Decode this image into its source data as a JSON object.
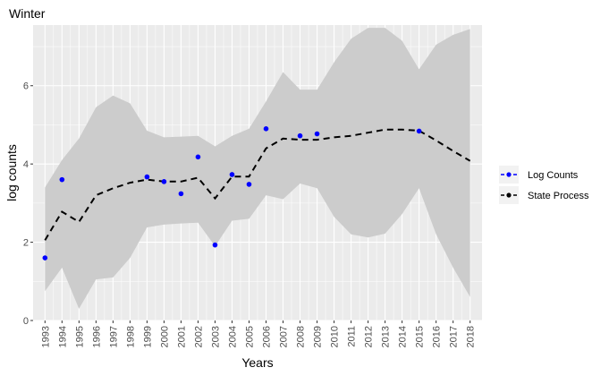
{
  "chart_data": {
    "type": "line",
    "title": "Winter",
    "xlabel": "Years",
    "ylabel": "log counts",
    "xlim": [
      1992.3,
      2018.7
    ],
    "ylim": [
      0,
      7.55
    ],
    "yticks": [
      0,
      2,
      4,
      6
    ],
    "x": [
      1993,
      1994,
      1995,
      1996,
      1997,
      1998,
      1999,
      2000,
      2001,
      2002,
      2003,
      2004,
      2005,
      2006,
      2007,
      2008,
      2009,
      2010,
      2011,
      2012,
      2013,
      2014,
      2015,
      2016,
      2017,
      2018
    ],
    "series": [
      {
        "name": "Log Counts",
        "kind": "points",
        "color": "#0000ff",
        "points": [
          {
            "x": 1993,
            "y": 1.6
          },
          {
            "x": 1994,
            "y": 3.6
          },
          {
            "x": 1999,
            "y": 3.67
          },
          {
            "x": 2000,
            "y": 3.55
          },
          {
            "x": 2001,
            "y": 3.24
          },
          {
            "x": 2002,
            "y": 4.18
          },
          {
            "x": 2003,
            "y": 1.93
          },
          {
            "x": 2004,
            "y": 3.73
          },
          {
            "x": 2005,
            "y": 3.48
          },
          {
            "x": 2006,
            "y": 4.9
          },
          {
            "x": 2008,
            "y": 4.72
          },
          {
            "x": 2009,
            "y": 4.77
          },
          {
            "x": 2015,
            "y": 4.84
          }
        ]
      },
      {
        "name": "State Process",
        "kind": "dashed-line",
        "color": "#000000",
        "values": [
          2.05,
          2.78,
          2.52,
          3.2,
          3.38,
          3.52,
          3.6,
          3.55,
          3.55,
          3.65,
          3.12,
          3.68,
          3.68,
          4.4,
          4.65,
          4.62,
          4.62,
          4.68,
          4.72,
          4.8,
          4.88,
          4.88,
          4.85,
          4.6,
          4.33,
          4.08
        ]
      }
    ],
    "band": {
      "fill": "#cccccc",
      "lower": [
        0.75,
        1.35,
        0.3,
        1.05,
        1.1,
        1.6,
        2.38,
        2.45,
        2.48,
        2.5,
        1.9,
        2.55,
        2.6,
        3.2,
        3.1,
        3.5,
        3.38,
        2.65,
        2.2,
        2.12,
        2.22,
        2.72,
        3.38,
        2.2,
        1.35,
        0.6
      ],
      "upper": [
        3.4,
        4.1,
        4.65,
        5.45,
        5.75,
        5.55,
        4.85,
        4.68,
        4.7,
        4.72,
        4.45,
        4.72,
        4.9,
        5.6,
        6.35,
        5.9,
        5.9,
        6.6,
        7.2,
        7.48,
        7.48,
        7.15,
        6.42,
        7.05,
        7.3,
        7.45
      ]
    },
    "panel_background": "#ebebeb",
    "grid": true,
    "grid_color": "#ffffff",
    "legend_position": "right"
  }
}
